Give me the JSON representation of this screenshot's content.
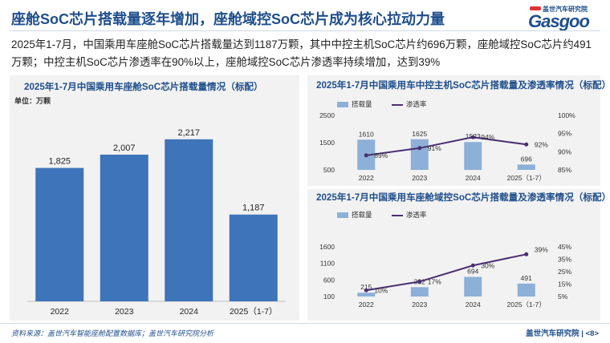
{
  "header": {
    "title": "座舱SoC芯片搭载量逐年增加，座舱域控SoC芯片成为核心拉动力量",
    "logo_cn": "盖世汽车研究院",
    "logo_en": "Gasgoo"
  },
  "summary": "2025年1-7月，中国乘用车座舱SoC芯片搭载量达到1187万颗，其中中控主机SoC芯片约696万颗，座舱域控SoC芯片约491万颗；中控主机SoC芯片渗透率在90%以上，座舱域控SoC芯片渗透率持续增加，达到39%",
  "colors": {
    "brand": "#1f4e8c",
    "bar_dark": "#3e74b9",
    "bar_light": "#8db0d8",
    "line": "#4a2f72",
    "panel": "#f2f2f2"
  },
  "chart_data": [
    {
      "type": "bar",
      "title": "2025年1-7月中国乘用车座舱SoC芯片搭载量情况（标配）",
      "unit": "单位：万颗",
      "categories": [
        "2022",
        "2023",
        "2024",
        "2025（1-7）"
      ],
      "values": [
        1825,
        2007,
        2217,
        1187
      ],
      "value_labels": [
        "1,825",
        "2,007",
        "2,217",
        "1,187"
      ],
      "ylim": [
        0,
        2500
      ],
      "grid": false
    },
    {
      "type": "bar",
      "title": "2025年1-7月中国乘用车中控主机SoC芯片搭载量及渗透率情况（标配）",
      "categories": [
        "2022",
        "2023",
        "2024",
        "2025（1-7）"
      ],
      "legend": [
        "搭载量",
        "渗透率"
      ],
      "legend_position": "top-left",
      "left_axis": {
        "ticks": [
          500,
          1500,
          2500
        ],
        "tick_labels": [
          "500",
          "1500",
          "2500"
        ],
        "range": [
          500,
          2500
        ]
      },
      "right_axis": {
        "ticks": [
          85,
          90,
          95,
          100
        ],
        "tick_labels": [
          "85%",
          "90%",
          "95%",
          "100%"
        ],
        "range": [
          85,
          100
        ]
      },
      "series": [
        {
          "name": "搭载量",
          "kind": "bar",
          "values": [
            1610,
            1625,
            1523,
            696
          ],
          "labels": [
            "1610",
            "1625",
            "1523",
            "696"
          ]
        },
        {
          "name": "渗透率",
          "kind": "line",
          "values": [
            89,
            91,
            94,
            92
          ],
          "labels": [
            "89%",
            "91%",
            "94%",
            "92%"
          ]
        }
      ]
    },
    {
      "type": "bar",
      "title": "2025年1-7月中国乘用车座舱域控SoC芯片搭载量及渗透率情况（标配）",
      "categories": [
        "2022",
        "2023",
        "2024",
        "2025（1-7）"
      ],
      "legend": [
        "搭载量",
        "渗透率"
      ],
      "legend_position": "top-left",
      "left_axis": {
        "ticks": [
          100,
          600,
          1100,
          1600
        ],
        "tick_labels": [
          "100",
          "600",
          "1100",
          "1600"
        ],
        "range": [
          100,
          1600
        ]
      },
      "right_axis": {
        "ticks": [
          5,
          15,
          25,
          35,
          45
        ],
        "tick_labels": [
          "5%",
          "15%",
          "25%",
          "35%",
          "45%"
        ],
        "range": [
          5,
          45
        ]
      },
      "series": [
        {
          "name": "搭载量",
          "kind": "bar",
          "values": [
            215,
            382,
            694,
            491
          ],
          "labels": [
            "215",
            "382",
            "694",
            "491"
          ]
        },
        {
          "name": "渗透率",
          "kind": "line",
          "values": [
            10,
            17,
            30,
            39
          ],
          "labels": [
            "10%",
            "17%",
            "30%",
            "39%"
          ]
        }
      ]
    }
  ],
  "footer": {
    "source": "资料来源：盖世汽车智能座舱配置数据库；盖世汽车研究院分析",
    "org": "盖世汽车研究院",
    "page": "<8>"
  }
}
